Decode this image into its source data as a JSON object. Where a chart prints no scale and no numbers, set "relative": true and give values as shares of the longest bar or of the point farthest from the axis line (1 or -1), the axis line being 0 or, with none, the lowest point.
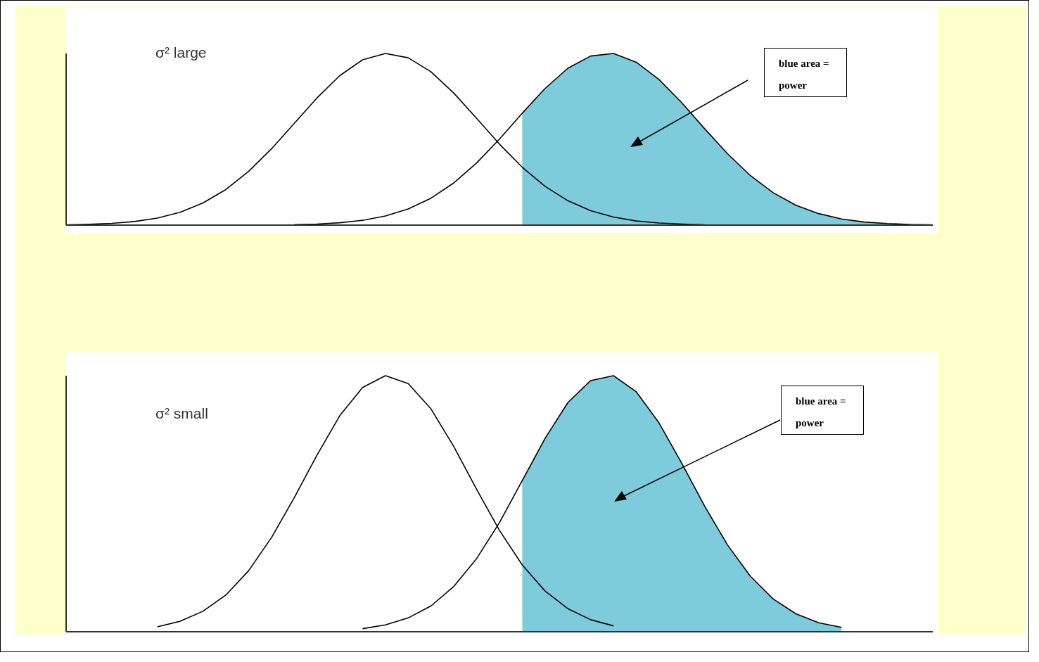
{
  "chart_data": [
    {
      "type": "line",
      "relative": true,
      "marker": "none",
      "annotations": [
        "σ² large",
        "blue area = power"
      ],
      "categories": [
        null,
        null,
        null,
        null,
        null,
        null,
        null,
        null,
        null,
        null,
        null,
        null,
        null,
        null,
        null,
        null,
        null,
        null,
        null,
        null,
        null,
        null,
        null,
        null,
        null,
        null,
        null,
        null,
        null,
        null,
        null,
        null,
        null,
        null,
        null,
        null,
        null,
        null,
        null
      ],
      "series": [
        {
          "type": "area",
          "color": "#7ecbdc",
          "values": [
            null,
            null,
            null,
            null,
            null,
            null,
            null,
            null,
            null,
            null,
            null,
            null,
            null,
            null,
            null,
            null,
            null,
            null,
            null,
            null,
            0.652,
            0.796,
            0.914,
            0.985,
            1,
            0.949,
            0.848,
            0.712,
            0.561,
            0.416,
            0.289,
            0.189,
            0.116,
            0.067,
            0.036,
            0.018,
            0.009,
            0.004,
            0.002
          ]
        },
        {
          "color": "#000000",
          "values": [
            0.002,
            0.005,
            0.01,
            0.021,
            0.041,
            0.075,
            0.129,
            0.207,
            0.313,
            0.444,
            0.592,
            0.741,
            0.871,
            0.963,
            1,
            0.975,
            0.893,
            0.769,
            0.622,
            0.472,
            0.337,
            0.226,
            0.142,
            0.084,
            0.047,
            0.024,
            0.012,
            0.006,
            0.002,
            null,
            null,
            null,
            null,
            null,
            null,
            null,
            null,
            null,
            null
          ]
        },
        {
          "color": "#000000",
          "values": [
            null,
            null,
            null,
            null,
            null,
            null,
            null,
            null,
            null,
            null,
            0.003,
            0.006,
            0.014,
            0.028,
            0.053,
            0.094,
            0.157,
            0.246,
            0.362,
            0.501,
            0.652,
            0.796,
            0.914,
            0.985,
            1,
            0.949,
            0.848,
            0.712,
            0.561,
            0.416,
            0.289,
            0.189,
            0.116,
            0.067,
            0.036,
            0.018,
            0.009,
            0.004,
            0.002
          ]
        }
      ]
    },
    {
      "type": "line",
      "relative": true,
      "marker": "none",
      "annotations": [
        "σ² small",
        "blue area = power"
      ],
      "categories": [
        null,
        null,
        null,
        null,
        null,
        null,
        null,
        null,
        null,
        null,
        null,
        null,
        null,
        null,
        null,
        null,
        null,
        null,
        null,
        null,
        null,
        null,
        null,
        null,
        null,
        null,
        null,
        null,
        null,
        null,
        null,
        null,
        null,
        null,
        null,
        null,
        null,
        null,
        null
      ],
      "series": [
        {
          "type": "area",
          "color": "#7ecbdc",
          "values": [
            null,
            null,
            null,
            null,
            null,
            null,
            null,
            null,
            null,
            null,
            null,
            null,
            null,
            null,
            null,
            null,
            null,
            null,
            null,
            null,
            0.59,
            0.755,
            0.895,
            0.981,
            1,
            0.937,
            0.815,
            0.657,
            0.49,
            0.339,
            0.217,
            0.128,
            0.07,
            0.035,
            0.017,
            null,
            null,
            null,
            null
          ]
        },
        {
          "color": "#000000",
          "values": [
            null,
            null,
            null,
            null,
            0.019,
            0.041,
            0.08,
            0.143,
            0.238,
            0.367,
            0.523,
            0.69,
            0.844,
            0.954,
            1,
            0.969,
            0.87,
            0.723,
            0.556,
            0.396,
            0.261,
            0.159,
            0.09,
            0.047,
            0.023,
            null,
            null,
            null,
            null,
            null,
            null,
            null,
            null,
            null,
            null,
            null,
            null,
            null,
            null
          ]
        },
        {
          "color": "#000000",
          "values": [
            null,
            null,
            null,
            null,
            null,
            null,
            null,
            null,
            null,
            null,
            null,
            null,
            null,
            0.012,
            0.027,
            0.054,
            0.101,
            0.177,
            0.286,
            0.426,
            0.59,
            0.755,
            0.895,
            0.981,
            1,
            0.937,
            0.815,
            0.657,
            0.49,
            0.339,
            0.217,
            0.128,
            0.07,
            0.035,
            0.017,
            null,
            null,
            null,
            null
          ]
        }
      ]
    }
  ]
}
